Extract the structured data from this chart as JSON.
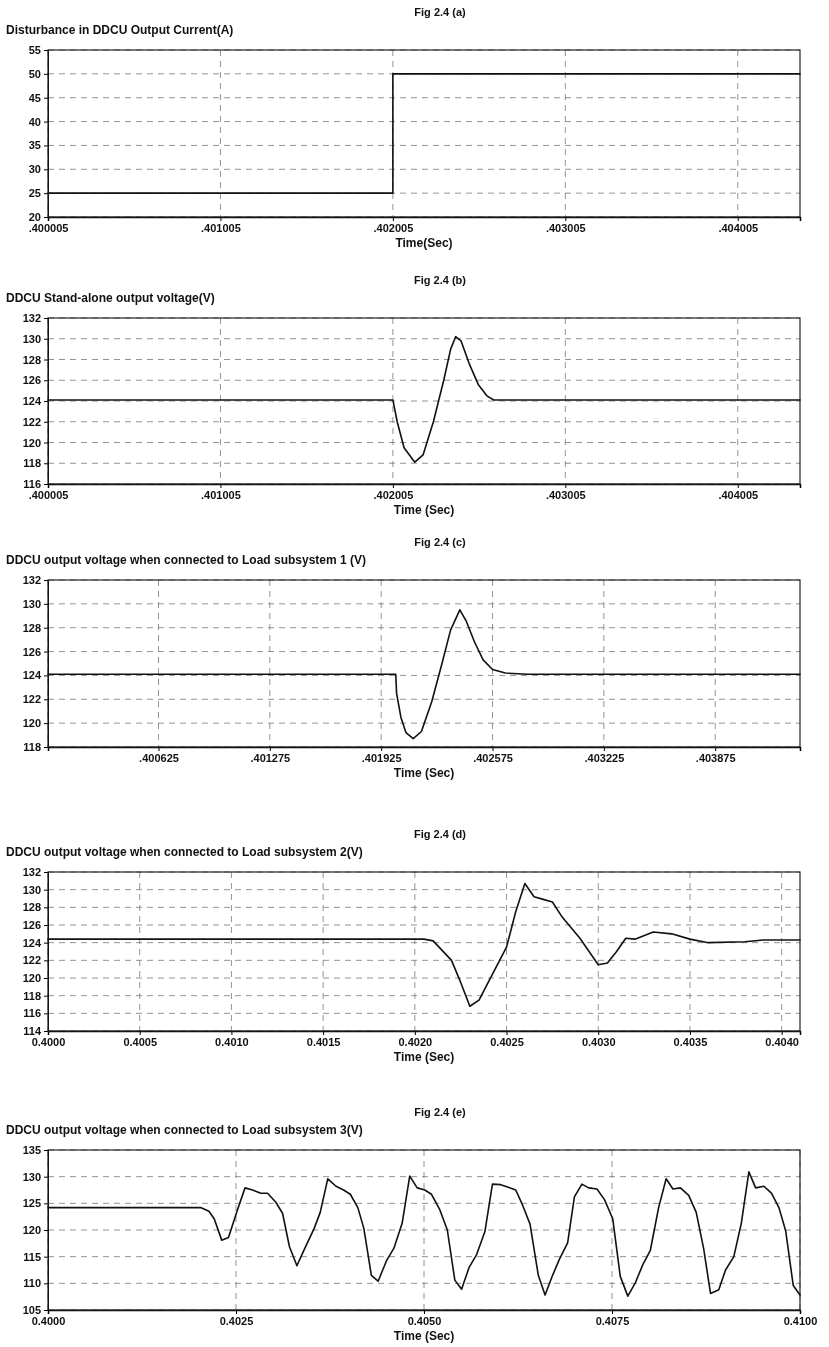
{
  "chart_data": [
    {
      "type": "line",
      "title": "Fig 2.4 (a)",
      "ylabel": "Disturbance in DDCU Output Current(A)",
      "xlabel": "Time(Sec)",
      "grid": true,
      "line_style": "solid",
      "xlim": [
        0.400005,
        0.404366
      ],
      "xticks": [
        {
          "value": 0.400005,
          "label": ".400005"
        },
        {
          "value": 0.401005,
          "label": ".401005"
        },
        {
          "value": 0.402005,
          "label": ".402005"
        },
        {
          "value": 0.403005,
          "label": ".403005"
        },
        {
          "value": 0.404005,
          "label": ".404005"
        }
      ],
      "ylim": [
        20,
        55
      ],
      "yticks": [
        20,
        25,
        30,
        35,
        40,
        45,
        50,
        55
      ],
      "series": [
        {
          "color": "#111111",
          "x": [
            0.400005,
            0.402005,
            0.402005,
            0.404366
          ],
          "values": [
            25,
            25,
            50,
            50
          ]
        }
      ]
    },
    {
      "type": "line",
      "title": "Fig 2.4 (b)",
      "ylabel": "DDCU Stand-alone output voltage(V)",
      "xlabel": "Time (Sec)",
      "grid": true,
      "line_style": "solid",
      "xlim": [
        0.400005,
        0.404366
      ],
      "xticks": [
        {
          "value": 0.400005,
          "label": ".400005"
        },
        {
          "value": 0.401005,
          "label": ".401005"
        },
        {
          "value": 0.402005,
          "label": ".402005"
        },
        {
          "value": 0.403005,
          "label": ".403005"
        },
        {
          "value": 0.404005,
          "label": ".404005"
        }
      ],
      "ylim": [
        116,
        132
      ],
      "yticks": [
        116,
        118,
        120,
        122,
        124,
        126,
        128,
        130,
        132
      ],
      "series": [
        {
          "color": "#111111",
          "x": [
            0.400005,
            0.402005,
            0.40203,
            0.40207,
            0.402132,
            0.40218,
            0.40224,
            0.4023,
            0.40234,
            0.402369,
            0.4024,
            0.40245,
            0.4025,
            0.40255,
            0.40259,
            0.404366
          ],
          "values": [
            124.1,
            124.1,
            122,
            119.5,
            118.1,
            118.8,
            122,
            126,
            129,
            130.2,
            129.8,
            127.5,
            125.6,
            124.5,
            124.1,
            124.1
          ]
        }
      ]
    },
    {
      "type": "line",
      "title": "Fig 2.4 (c)",
      "ylabel": "DDCU output voltage when connected to Load subsystem 1 (V)",
      "xlabel": "Time (Sec)",
      "grid": true,
      "line_style": "solid",
      "xlim": [
        0.39998,
        0.40437
      ],
      "xticks": [
        {
          "value": 0.39998,
          "label": null
        },
        {
          "value": 0.400625,
          "label": ".400625"
        },
        {
          "value": 0.401275,
          "label": ".401275"
        },
        {
          "value": 0.401925,
          "label": ".401925"
        },
        {
          "value": 0.402575,
          "label": ".402575"
        },
        {
          "value": 0.403225,
          "label": ".403225"
        },
        {
          "value": 0.403875,
          "label": ".403875"
        }
      ],
      "ylim": [
        118,
        132
      ],
      "yticks": [
        118,
        120,
        122,
        124,
        126,
        128,
        130,
        132
      ],
      "series": [
        {
          "color": "#111111",
          "x": [
            0.39998,
            0.40201,
            0.402015,
            0.40204,
            0.40207,
            0.402112,
            0.40216,
            0.40222,
            0.40228,
            0.40233,
            0.402384,
            0.40242,
            0.40247,
            0.40252,
            0.402575,
            0.40265,
            0.40278,
            0.40437
          ],
          "values": [
            124.1,
            124.1,
            122.5,
            120.5,
            119.2,
            118.7,
            119.3,
            121.8,
            125,
            127.8,
            129.5,
            128.6,
            126.8,
            125.3,
            124.5,
            124.2,
            124.1,
            124.1
          ]
        }
      ]
    },
    {
      "type": "line",
      "title": "Fig 2.4 (d)",
      "ylabel": "DDCU output voltage when connected to Load subsystem 2(V)",
      "xlabel": "Time (Sec)",
      "grid": true,
      "line_style": "solid",
      "xlim": [
        0.4,
        0.4041
      ],
      "xticks": [
        {
          "value": 0.4,
          "label": "0.4000"
        },
        {
          "value": 0.4005,
          "label": "0.4005"
        },
        {
          "value": 0.401,
          "label": "0.4010"
        },
        {
          "value": 0.4015,
          "label": "0.4015"
        },
        {
          "value": 0.402,
          "label": "0.4020"
        },
        {
          "value": 0.4025,
          "label": "0.4025"
        },
        {
          "value": 0.403,
          "label": "0.4030"
        },
        {
          "value": 0.4035,
          "label": "0.4035"
        },
        {
          "value": 0.404,
          "label": "0.4040"
        }
      ],
      "ylim": [
        114,
        132
      ],
      "yticks": [
        114,
        116,
        118,
        120,
        122,
        124,
        126,
        128,
        130,
        132
      ],
      "series": [
        {
          "color": "#111111",
          "x": [
            0.4,
            0.40205,
            0.4021,
            0.4022,
            0.40225,
            0.4023,
            0.40235,
            0.4024,
            0.4025,
            0.40255,
            0.4026,
            0.40265,
            0.4027,
            0.40275,
            0.4028,
            0.4029,
            0.40295,
            0.403,
            0.40305,
            0.4031,
            0.40315,
            0.4032,
            0.4033,
            0.4034,
            0.4035,
            0.4036,
            0.4038,
            0.4039,
            0.4041
          ],
          "values": [
            124.4,
            124.4,
            124.2,
            122,
            119.5,
            116.8,
            117.5,
            119.5,
            123.5,
            127.5,
            130.7,
            129.2,
            128.9,
            128.6,
            127,
            124.5,
            123,
            121.5,
            121.7,
            123,
            124.5,
            124.4,
            125.2,
            125,
            124.4,
            124,
            124.1,
            124.3,
            124.3
          ]
        }
      ]
    },
    {
      "type": "line",
      "title": "Fig 2.4 (e)",
      "ylabel": "DDCU output voltage when connected to Load subsystem 3(V)",
      "xlabel": "Time (Sec)",
      "grid": true,
      "line_style": "solid",
      "xlim": [
        0.4,
        0.41
      ],
      "xticks": [
        {
          "value": 0.4,
          "label": "0.4000"
        },
        {
          "value": 0.4025,
          "label": "0.4025"
        },
        {
          "value": 0.405,
          "label": "0.4050"
        },
        {
          "value": 0.4075,
          "label": "0.4075"
        },
        {
          "value": 0.41,
          "label": "0.4100"
        }
      ],
      "ylim": [
        105,
        135
      ],
      "yticks": [
        105,
        110,
        115,
        120,
        125,
        130,
        135
      ],
      "series": [
        {
          "color": "#111111",
          "x": [
            0.4,
            0.40203,
            0.40214,
            0.40221,
            0.40231,
            0.4024,
            0.40252,
            0.40262,
            0.40272,
            0.40283,
            0.40292,
            0.40303,
            0.40312,
            0.40321,
            0.40331,
            0.40341,
            0.40354,
            0.40362,
            0.40372,
            0.40383,
            0.40393,
            0.40402,
            0.40412,
            0.4042,
            0.4043,
            0.40439,
            0.4045,
            0.4046,
            0.40471,
            0.40481,
            0.40491,
            0.40501,
            0.4051,
            0.40521,
            0.40531,
            0.40541,
            0.4055,
            0.4056,
            0.4057,
            0.40581,
            0.40591,
            0.40602,
            0.40612,
            0.40622,
            0.40631,
            0.40641,
            0.40652,
            0.40661,
            0.40671,
            0.4068,
            0.40691,
            0.407,
            0.4071,
            0.40719,
            0.4073,
            0.4074,
            0.40751,
            0.40761,
            0.40771,
            0.40781,
            0.40791,
            0.40801,
            0.40812,
            0.40822,
            0.40831,
            0.40841,
            0.40852,
            0.40862,
            0.40872,
            0.40881,
            0.40892,
            0.40901,
            0.40912,
            0.40922,
            0.40932,
            0.40941,
            0.40952,
            0.40962,
            0.40972,
            0.40981,
            0.40991,
            0.41
          ],
          "values": [
            124.2,
            124.2,
            123.5,
            122.1,
            118.1,
            118.6,
            123.8,
            127.9,
            127.5,
            126.9,
            126.9,
            125.2,
            123.1,
            116.9,
            113.3,
            116.4,
            120.3,
            123.3,
            129.6,
            128.2,
            127.5,
            126.7,
            124.2,
            120.3,
            111.5,
            110.4,
            114.2,
            116.6,
            121.3,
            130.1,
            127.9,
            127.5,
            126.7,
            123.8,
            120,
            110.6,
            108.9,
            113,
            115.4,
            119.7,
            128.6,
            128.5,
            128,
            127.5,
            124.7,
            121.1,
            111.5,
            107.8,
            111.5,
            114.5,
            117.6,
            126.2,
            128.6,
            127.9,
            127.7,
            125.7,
            122.1,
            111.3,
            107.6,
            110.1,
            113.5,
            116.2,
            124.2,
            129.6,
            127.7,
            127.9,
            126.5,
            123.3,
            116.4,
            108.1,
            108.8,
            112.5,
            115,
            121.3,
            130.9,
            127.9,
            128.2,
            126.9,
            124.2,
            119.8,
            109.6,
            107.8
          ]
        }
      ]
    }
  ]
}
